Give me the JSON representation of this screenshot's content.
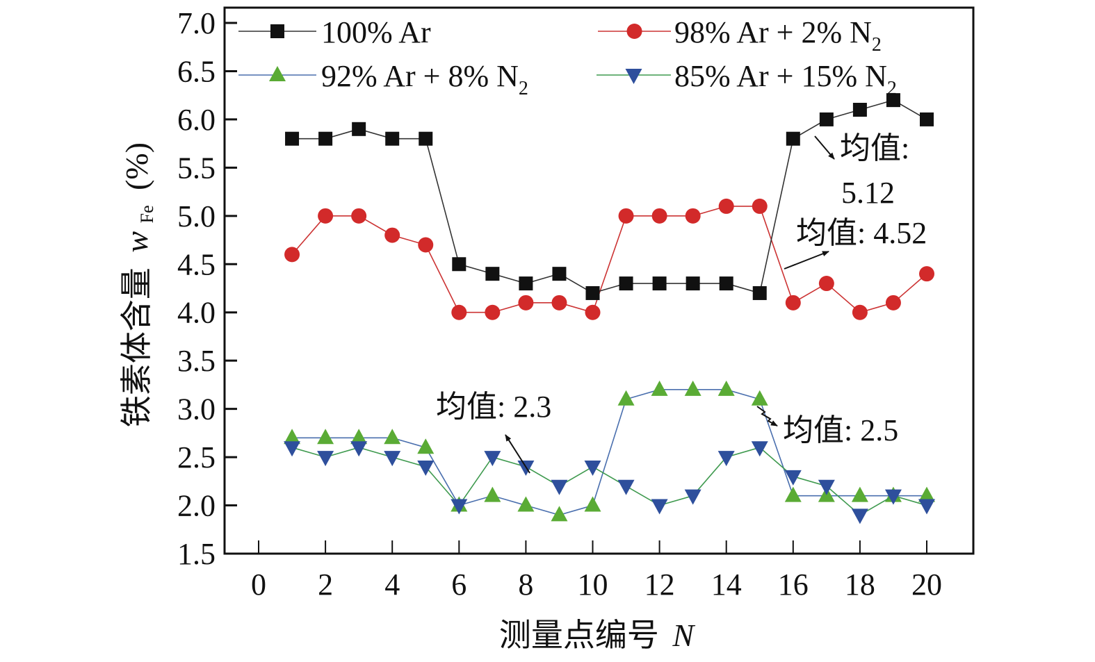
{
  "chart_data": {
    "type": "line",
    "title": "",
    "xlabel": "测量点编号",
    "xlabel_var": "N",
    "ylabel": "铁素体含量",
    "ylabel_var": "w",
    "ylabel_sub": "Fe",
    "ylabel_unit": "(%)",
    "xlim": [
      -1,
      21
    ],
    "ylim": [
      1.5,
      7.0
    ],
    "xticks": [
      0,
      2,
      4,
      6,
      8,
      10,
      12,
      14,
      16,
      18,
      20
    ],
    "xtick_labels": [
      "0",
      "2",
      "4",
      "6",
      "8",
      "10",
      "12",
      "14",
      "16",
      "18",
      "20"
    ],
    "yticks": [
      1.5,
      2.0,
      2.5,
      3.0,
      3.5,
      4.0,
      4.5,
      5.0,
      5.5,
      6.0,
      6.5,
      7.0
    ],
    "ytick_labels": [
      "1.5",
      "2.0",
      "2.5",
      "3.0",
      "3.5",
      "4.0",
      "4.5",
      "5.0",
      "5.5",
      "6.0",
      "6.5",
      "7.0"
    ],
    "grid": false,
    "legend_position": "top",
    "x": [
      1,
      2,
      3,
      4,
      5,
      6,
      7,
      8,
      9,
      10,
      11,
      12,
      13,
      14,
      15,
      16,
      17,
      18,
      19,
      20
    ],
    "series": [
      {
        "name": "100% Ar",
        "label_main": "100% Ar",
        "label_sub": "",
        "marker": "square",
        "marker_color": "#111111",
        "line_color": "#333333",
        "values": [
          5.8,
          5.8,
          5.9,
          5.8,
          5.8,
          4.5,
          4.4,
          4.3,
          4.4,
          4.2,
          4.3,
          4.3,
          4.3,
          4.3,
          4.2,
          5.8,
          6.0,
          6.1,
          6.2,
          6.0
        ]
      },
      {
        "name": "98% Ar + 2% N2",
        "label_main": "98% Ar + 2% N",
        "label_sub": "2",
        "marker": "circle",
        "marker_color": "#d22a2a",
        "line_color": "#cc3333",
        "values": [
          4.6,
          5.0,
          5.0,
          4.8,
          4.7,
          4.0,
          4.0,
          4.1,
          4.1,
          4.0,
          5.0,
          5.0,
          5.0,
          5.1,
          5.1,
          4.1,
          4.3,
          4.0,
          4.1,
          4.4
        ]
      },
      {
        "name": "92% Ar + 8% N2",
        "label_main": "92% Ar + 8% N",
        "label_sub": "2",
        "marker": "triangle-up",
        "marker_color": "#5aab35",
        "line_color": "#4a6fae",
        "values": [
          2.7,
          2.7,
          2.7,
          2.7,
          2.6,
          2.0,
          2.1,
          2.0,
          1.9,
          2.0,
          3.1,
          3.2,
          3.2,
          3.2,
          3.1,
          2.1,
          2.1,
          2.1,
          2.1,
          2.1
        ]
      },
      {
        "name": "85% Ar + 15% N2",
        "label_main": "85% Ar + 15% N",
        "label_sub": "2",
        "marker": "triangle-down",
        "marker_color": "#2e4f9c",
        "line_color": "#3f9a4f",
        "values": [
          2.6,
          2.5,
          2.6,
          2.5,
          2.4,
          2.0,
          2.5,
          2.4,
          2.2,
          2.4,
          2.2,
          2.0,
          2.1,
          2.5,
          2.6,
          2.3,
          2.2,
          1.9,
          2.1,
          2.0
        ]
      }
    ],
    "annotations": [
      {
        "text": "均值:",
        "text2": "5.12",
        "series": "100% Ar",
        "mean": 5.12
      },
      {
        "text": "均值: 4.52",
        "series": "98% Ar + 2% N2",
        "mean": 4.52
      },
      {
        "text": "均值: 2.3",
        "series": "85% Ar + 15% N2",
        "mean": 2.3
      },
      {
        "text": "均值: 2.5",
        "series": "92% Ar + 8% N2",
        "mean": 2.5
      }
    ]
  }
}
